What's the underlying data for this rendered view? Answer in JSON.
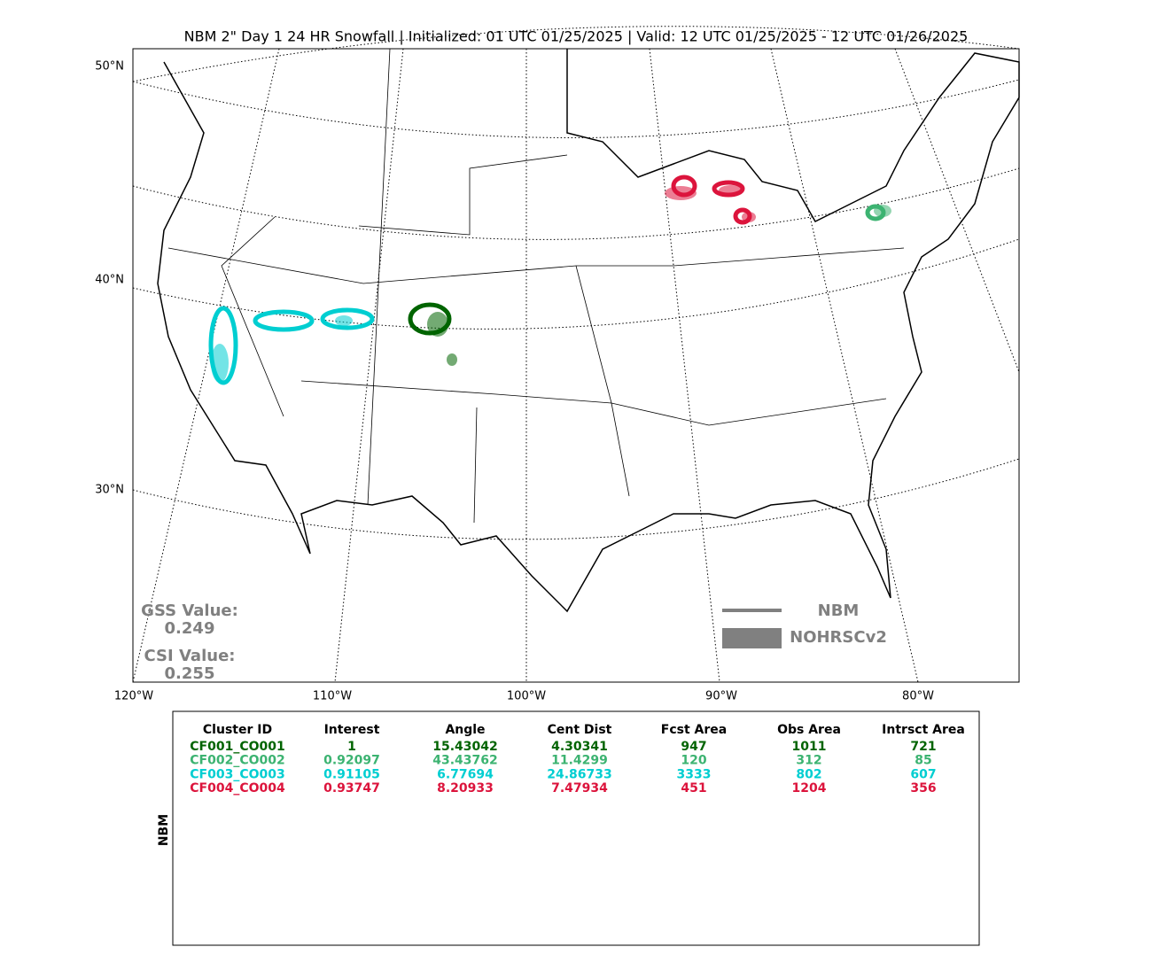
{
  "title": "NBM 2\" Day 1 24 HR Snowfall | Initialized: 01 UTC 01/25/2025 | Valid: 12 UTC 01/25/2025 - 12 UTC 01/26/2025",
  "map": {
    "lat_labels": [
      "50°N",
      "40°N",
      "30°N"
    ],
    "lon_labels": [
      "120°W",
      "110°W",
      "100°W",
      "90°W",
      "80°W"
    ]
  },
  "scores": {
    "gss_label": "GSS Value:",
    "gss": "0.249",
    "csi_label": "CSI Value:",
    "csi": "0.255"
  },
  "legend": {
    "items": [
      {
        "label": "NBM"
      },
      {
        "label": "NOHRSCv2"
      }
    ]
  },
  "table": {
    "side_label": "NBM",
    "headers": [
      "Cluster ID",
      "Interest",
      "Angle",
      "Cent Dist",
      "Fcst Area",
      "Obs Area",
      "Intrsct Area"
    ],
    "rows": [
      {
        "color": "#006400",
        "cells": [
          "CF001_CO001",
          "1",
          "15.43042",
          "4.30341",
          "947",
          "1011",
          "721"
        ]
      },
      {
        "color": "#3cb371",
        "cells": [
          "CF002_CO002",
          "0.92097",
          "43.43762",
          "11.4299",
          "120",
          "312",
          "85"
        ]
      },
      {
        "color": "#00ced1",
        "cells": [
          "CF003_CO003",
          "0.91105",
          "6.77694",
          "24.86733",
          "3333",
          "802",
          "607"
        ]
      },
      {
        "color": "#dc143c",
        "cells": [
          "CF004_CO004",
          "0.93747",
          "8.20933",
          "7.47934",
          "451",
          "1204",
          "356"
        ]
      }
    ]
  }
}
